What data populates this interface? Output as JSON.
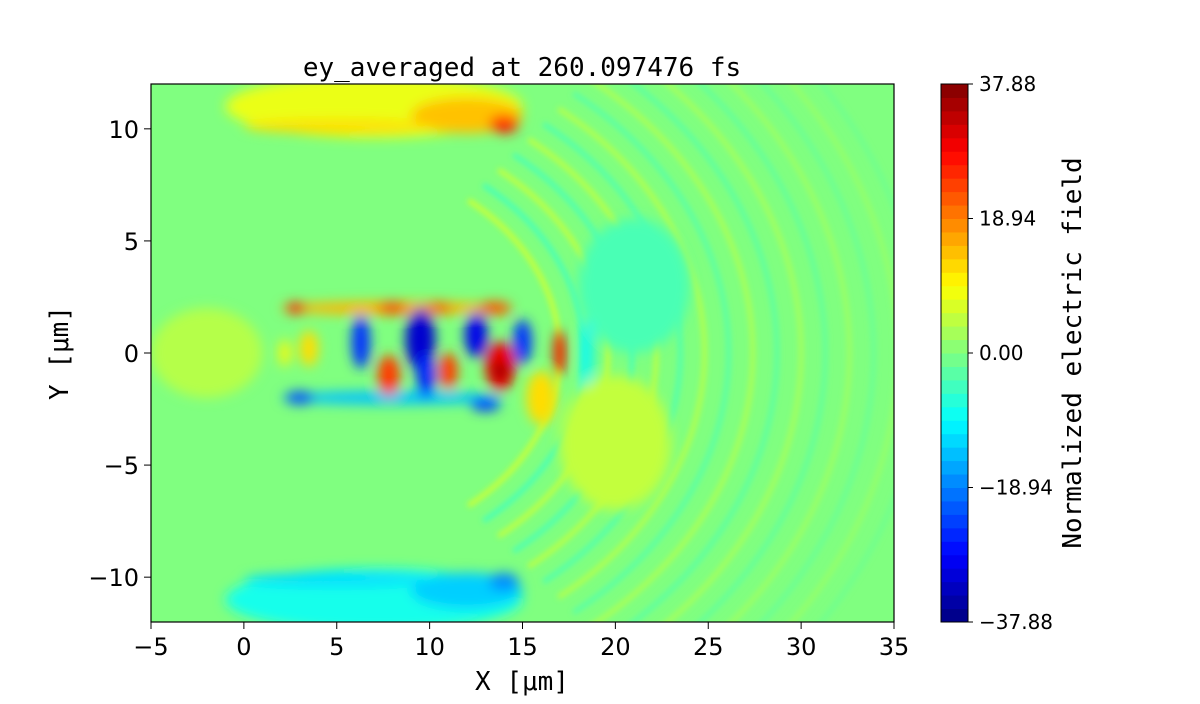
{
  "chart_data": {
    "type": "heatmap",
    "title": "ey_averaged at 260.097476 fs",
    "xlabel": "X [$\\mu m$]",
    "xlabel_display": "X [μm]",
    "ylabel_display": "Y [μm]",
    "xlim": [
      -5,
      35
    ],
    "ylim": [
      -12,
      12
    ],
    "xticks": [
      -5,
      0,
      5,
      10,
      15,
      20,
      25,
      30,
      35
    ],
    "xtick_labels": [
      "−5",
      "0",
      "5",
      "10",
      "15",
      "20",
      "25",
      "30",
      "35"
    ],
    "yticks": [
      -10,
      -5,
      0,
      5,
      10
    ],
    "ytick_labels": [
      "−10",
      "−5",
      "0",
      "5",
      "10"
    ],
    "colormap": "jet",
    "colorbar": {
      "label": "Normalized electric field",
      "range": [
        -37.88,
        37.88
      ],
      "ticks": [
        -37.88,
        -18.94,
        0.0,
        18.94,
        37.88
      ],
      "tick_labels": [
        "−37.88",
        "−18.94",
        "0.00",
        "18.94",
        "37.88"
      ],
      "levels": 40
    },
    "grid": false
  }
}
